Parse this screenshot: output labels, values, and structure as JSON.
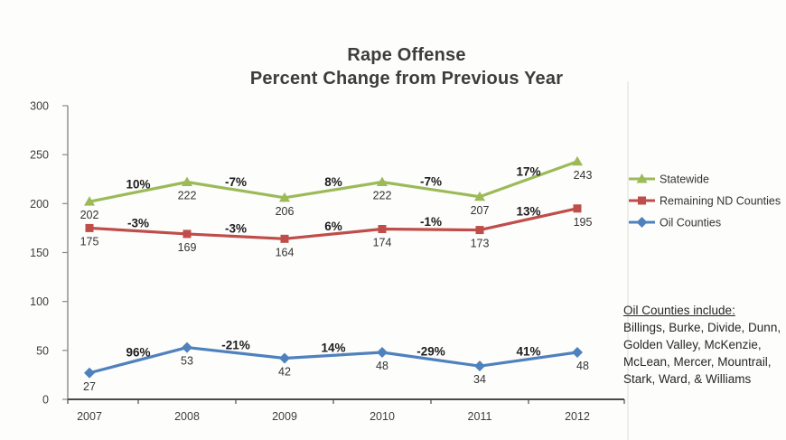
{
  "title": {
    "line1": "Rape Offense",
    "line2": "Percent Change from Previous Year"
  },
  "chart_data": {
    "type": "line",
    "title": "Rape Offense Percent Change from Previous Year",
    "categories": [
      "2007",
      "2008",
      "2009",
      "2010",
      "2011",
      "2012"
    ],
    "series": [
      {
        "name": "Statewide",
        "color": "#9cba58",
        "marker": "triangle",
        "values": [
          202,
          222,
          206,
          222,
          207,
          243
        ],
        "pct_changes": [
          "10%",
          "-7%",
          "8%",
          "-7%",
          "17%"
        ]
      },
      {
        "name": "Remaining ND Counties",
        "color": "#bf4d49",
        "marker": "square",
        "values": [
          175,
          169,
          164,
          174,
          173,
          195
        ],
        "pct_changes": [
          "-3%",
          "-3%",
          "6%",
          "-1%",
          "13%"
        ]
      },
      {
        "name": "Oil Counties",
        "color": "#4f81bd",
        "marker": "diamond",
        "values": [
          27,
          53,
          42,
          48,
          34,
          48
        ],
        "pct_changes": [
          "96%",
          "-21%",
          "14%",
          "-29%",
          "41%"
        ]
      }
    ],
    "xlabel": "",
    "ylabel": "",
    "ylim": [
      0,
      300
    ],
    "yticks": [
      0,
      50,
      100,
      150,
      200,
      250,
      300
    ],
    "grid": false,
    "legend_position": "right",
    "colors": {
      "axis_x": "#4a4a4a",
      "axis_y": "#8a8a8a",
      "tick_label": "#3d3d3d",
      "value_label": "#333333",
      "pct_label": "#1c1c1c"
    }
  },
  "note": {
    "title": "Oil Counties include:",
    "lines": [
      "Billings, Burke, Divide, Dunn,",
      "Golden Valley, McKenzie,",
      "McLean, Mercer, Mountrail,",
      "Stark, Ward, & Williams"
    ]
  }
}
